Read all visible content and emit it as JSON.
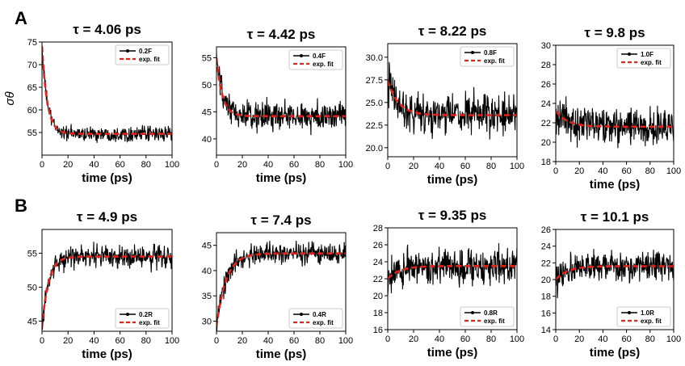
{
  "panel_labels": [
    "A",
    "B"
  ],
  "colors": {
    "data": "#000000",
    "fit": "#e32219"
  },
  "chart_data": [
    {
      "type": "line",
      "panel": "A",
      "title": "τ = 4.06 ps",
      "xlabel": "time (ps)",
      "ylabel": "σθ",
      "xlim": [
        0,
        100
      ],
      "ylim": [
        50,
        75
      ],
      "xticks": [
        0,
        20,
        40,
        60,
        80,
        100
      ],
      "yticks": [
        55,
        60,
        65,
        70,
        75
      ],
      "legend_position": "top-right",
      "grid": false,
      "tau": 4.06,
      "start": 74,
      "plateau": 54.7,
      "noise": 1.2,
      "series": [
        {
          "name": "0.2F"
        },
        {
          "name": "exp. fit"
        }
      ]
    },
    {
      "type": "line",
      "panel": "A",
      "title": "τ = 4.42 ps",
      "xlabel": "time (ps)",
      "ylabel": "",
      "xlim": [
        0,
        100
      ],
      "ylim": [
        37,
        57
      ],
      "xticks": [
        0,
        20,
        40,
        60,
        80,
        100
      ],
      "yticks": [
        40,
        45,
        50,
        55
      ],
      "legend_position": "top-right",
      "grid": false,
      "tau": 4.42,
      "start": 55,
      "plateau": 44.2,
      "noise": 2.0,
      "series": [
        {
          "name": "0.4F"
        },
        {
          "name": "exp. fit"
        }
      ]
    },
    {
      "type": "line",
      "panel": "A",
      "title": "τ = 8.22 ps",
      "xlabel": "time (ps)",
      "ylabel": "",
      "xlim": [
        0,
        100
      ],
      "ylim": [
        19,
        31.5
      ],
      "xticks": [
        0,
        20,
        40,
        60,
        80,
        100
      ],
      "yticks": [
        20.0,
        22.5,
        25.0,
        27.5,
        30.0
      ],
      "legend_position": "top-right",
      "grid": false,
      "tau": 8.22,
      "start": 27.4,
      "plateau": 23.6,
      "noise": 1.6,
      "series": [
        {
          "name": "0.8F"
        },
        {
          "name": "exp. fit"
        }
      ]
    },
    {
      "type": "line",
      "panel": "A",
      "title": "τ = 9.8 ps",
      "xlabel": "time (ps)",
      "ylabel": "",
      "xlim": [
        0,
        100
      ],
      "ylim": [
        18,
        30
      ],
      "xticks": [
        0,
        20,
        40,
        60,
        80,
        100
      ],
      "yticks": [
        18,
        20,
        22,
        24,
        26,
        28,
        30
      ],
      "legend_position": "top-right",
      "grid": false,
      "tau": 9.8,
      "start": 23.2,
      "plateau": 21.6,
      "noise": 1.4,
      "series": [
        {
          "name": "1.0F"
        },
        {
          "name": "exp. fit"
        }
      ]
    },
    {
      "type": "line",
      "panel": "B",
      "title": "τ = 4.9 ps",
      "xlabel": "time (ps)",
      "ylabel": "",
      "xlim": [
        0,
        100
      ],
      "ylim": [
        43.5,
        58.5
      ],
      "xticks": [
        0,
        20,
        40,
        60,
        80,
        100
      ],
      "yticks": [
        45,
        50,
        55
      ],
      "legend_position": "bottom-right",
      "grid": false,
      "tau": 4.9,
      "start": 44,
      "plateau": 54.5,
      "noise": 1.3,
      "series": [
        {
          "name": "0.2R"
        },
        {
          "name": "exp. fit"
        }
      ]
    },
    {
      "type": "line",
      "panel": "B",
      "title": "τ = 7.4 ps",
      "xlabel": "time (ps)",
      "ylabel": "",
      "xlim": [
        0,
        100
      ],
      "ylim": [
        28,
        47.5
      ],
      "xticks": [
        0,
        20,
        40,
        60,
        80,
        100
      ],
      "yticks": [
        30,
        35,
        40,
        45
      ],
      "legend_position": "bottom-right",
      "grid": false,
      "tau": 7.4,
      "start": 29,
      "plateau": 43.4,
      "noise": 1.5,
      "series": [
        {
          "name": "0.4R"
        },
        {
          "name": "exp. fit"
        }
      ]
    },
    {
      "type": "line",
      "panel": "B",
      "title": "τ = 9.35 ps",
      "xlabel": "time (ps)",
      "ylabel": "",
      "xlim": [
        0,
        100
      ],
      "ylim": [
        16,
        28
      ],
      "xticks": [
        0,
        20,
        40,
        60,
        80,
        100
      ],
      "yticks": [
        16,
        18,
        20,
        22,
        24,
        26,
        28
      ],
      "legend_position": "bottom-right",
      "grid": false,
      "tau": 9.35,
      "start": 22.0,
      "plateau": 23.5,
      "noise": 1.5,
      "series": [
        {
          "name": "0.8R"
        },
        {
          "name": "exp. fit"
        }
      ]
    },
    {
      "type": "line",
      "panel": "B",
      "title": "τ = 10.1 ps",
      "xlabel": "time (ps)",
      "ylabel": "",
      "xlim": [
        0,
        100
      ],
      "ylim": [
        14,
        26
      ],
      "xticks": [
        0,
        20,
        40,
        60,
        80,
        100
      ],
      "yticks": [
        14,
        16,
        18,
        20,
        22,
        24,
        26
      ],
      "legend_position": "bottom-right",
      "grid": false,
      "tau": 10.1,
      "start": 20.0,
      "plateau": 21.6,
      "noise": 1.3,
      "series": [
        {
          "name": "1.0R"
        },
        {
          "name": "exp. fit"
        }
      ]
    }
  ]
}
